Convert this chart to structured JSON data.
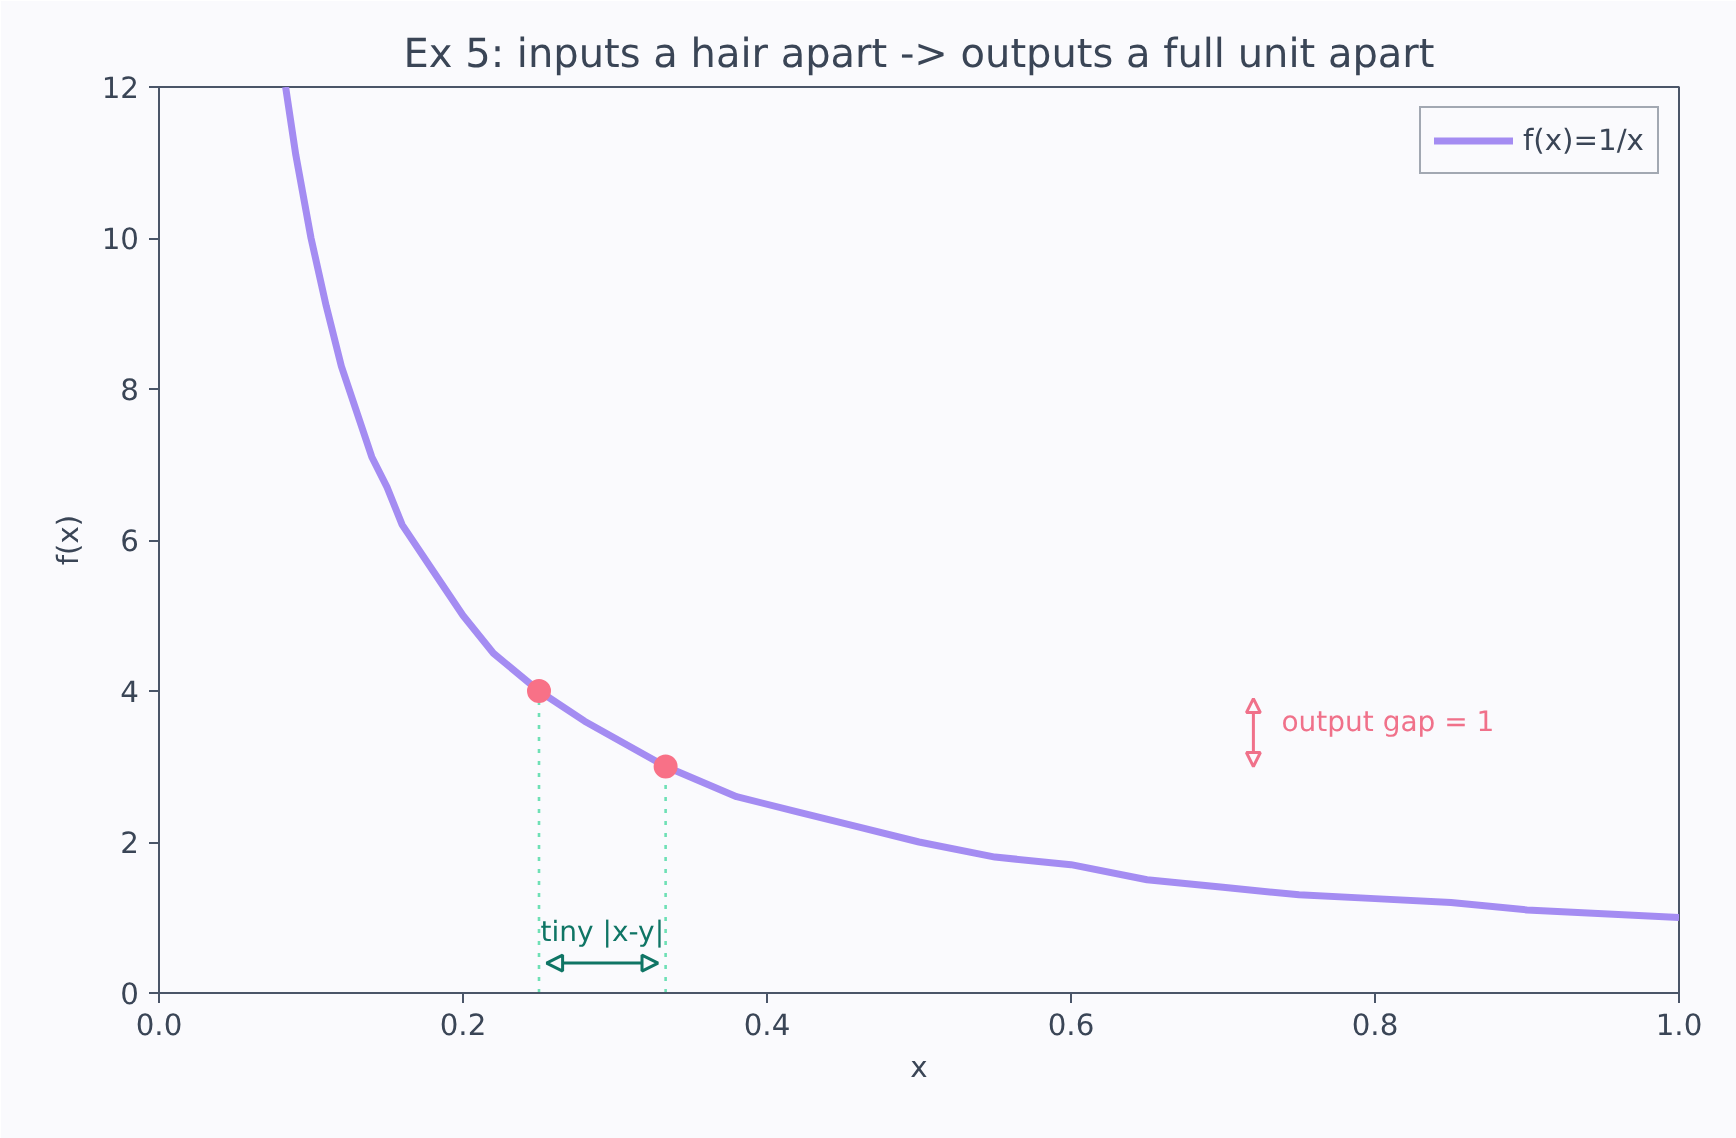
{
  "chart_data": {
    "type": "line",
    "title": "Ex 5: inputs a hair apart -> outputs a full unit apart",
    "xlabel": "x",
    "ylabel": "f(x)",
    "series": [
      {
        "name": "f(x)=1/x",
        "color": "#a48cf2",
        "x": [
          0.0833,
          0.09,
          0.1,
          0.11,
          0.12,
          0.13,
          0.14,
          0.15,
          0.16,
          0.18,
          0.2,
          0.22,
          0.25,
          0.28,
          0.3333,
          0.38,
          0.42,
          0.46,
          0.5,
          0.55,
          0.6,
          0.65,
          0.7,
          0.75,
          0.8,
          0.85,
          0.9,
          0.95,
          1.0
        ],
        "values": [
          12.0,
          11.1,
          10.0,
          9.1,
          8.3,
          7.7,
          7.1,
          6.7,
          6.2,
          5.6,
          5.0,
          4.5,
          4.0,
          3.6,
          3.0,
          2.6,
          2.4,
          2.2,
          2.0,
          1.8,
          1.7,
          1.5,
          1.4,
          1.3,
          1.25,
          1.2,
          1.1,
          1.05,
          1.0
        ]
      },
      {
        "type": "scatter",
        "color": "#f87187",
        "marker": "circle",
        "x": [
          0.25,
          0.3333
        ],
        "values": [
          4.0,
          3.0
        ]
      }
    ],
    "ref_lines": [
      {
        "axis": "x",
        "value": 0.25,
        "color": "#6ee0b5",
        "line_style": "dotted"
      },
      {
        "axis": "x",
        "value": 0.3333,
        "color": "#6ee0b5",
        "line_style": "dotted"
      }
    ],
    "annotations": [
      "tiny |x-y|",
      "output gap = 1"
    ],
    "xlim": [
      0.0,
      1.0
    ],
    "ylim": [
      0,
      12
    ],
    "xticks": [
      {
        "value": 0.0,
        "label": "0.0"
      },
      {
        "value": 0.2,
        "label": "0.2"
      },
      {
        "value": 0.4,
        "label": "0.4"
      },
      {
        "value": 0.6,
        "label": "0.6"
      },
      {
        "value": 0.8,
        "label": "0.8"
      },
      {
        "value": 1.0,
        "label": "1.0"
      }
    ],
    "yticks": [
      0,
      2,
      4,
      6,
      8,
      10,
      12
    ],
    "legend": "top right",
    "grid": false,
    "marker": "none",
    "line_style": "solid"
  }
}
